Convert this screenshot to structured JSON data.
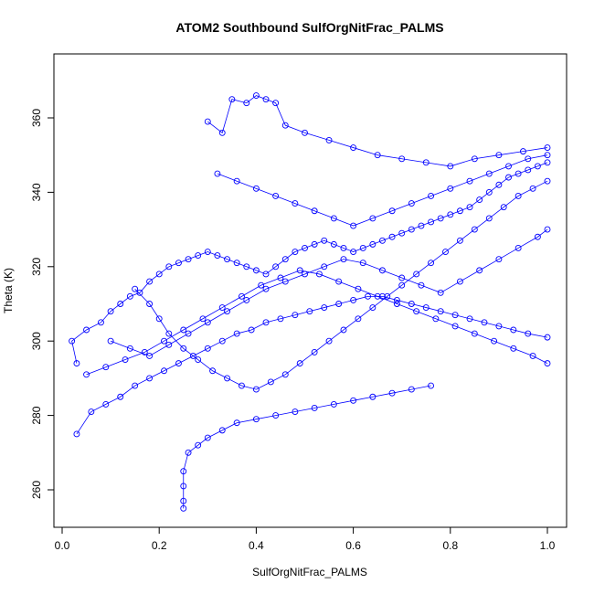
{
  "chart_data": {
    "type": "scatter",
    "title": "ATOM2 Southbound SulfOrgNitFrac_PALMS",
    "xlabel": "SulfOrgNitFrac_PALMS",
    "ylabel": "Theta (K)",
    "xlim": [
      0.0,
      1.0
    ],
    "ylim": [
      250,
      375
    ],
    "xticks": [
      {
        "value": 0.0,
        "label": "0.0"
      },
      {
        "value": 0.2,
        "label": "0.2"
      },
      {
        "value": 0.4,
        "label": "0.4"
      },
      {
        "value": 0.6,
        "label": "0.6"
      },
      {
        "value": 0.8,
        "label": "0.8"
      },
      {
        "value": 1.0,
        "label": "1.0"
      }
    ],
    "yticks": [
      {
        "value": 260,
        "label": "260"
      },
      {
        "value": 280,
        "label": "280"
      },
      {
        "value": 300,
        "label": "300"
      },
      {
        "value": 320,
        "label": "320"
      },
      {
        "value": 340,
        "label": "340"
      },
      {
        "value": 360,
        "label": "360"
      }
    ],
    "marker": "open-circle",
    "connected": true,
    "color": "#0000ff",
    "grid": false,
    "series": [
      {
        "points": [
          [
            0.03,
            294
          ],
          [
            0.02,
            300
          ],
          [
            0.05,
            303
          ],
          [
            0.08,
            305
          ],
          [
            0.1,
            308
          ],
          [
            0.12,
            310
          ],
          [
            0.14,
            312
          ],
          [
            0.16,
            313
          ],
          [
            0.18,
            316
          ],
          [
            0.2,
            318
          ],
          [
            0.22,
            320
          ],
          [
            0.24,
            321
          ],
          [
            0.26,
            322
          ],
          [
            0.28,
            323
          ],
          [
            0.3,
            324
          ],
          [
            0.32,
            323
          ],
          [
            0.34,
            322
          ],
          [
            0.36,
            321
          ],
          [
            0.38,
            320
          ],
          [
            0.4,
            319
          ],
          [
            0.42,
            318
          ],
          [
            0.44,
            320
          ],
          [
            0.46,
            322
          ],
          [
            0.48,
            324
          ],
          [
            0.5,
            325
          ],
          [
            0.52,
            326
          ],
          [
            0.54,
            327
          ],
          [
            0.56,
            326
          ],
          [
            0.58,
            325
          ],
          [
            0.6,
            324
          ],
          [
            0.62,
            325
          ],
          [
            0.64,
            326
          ],
          [
            0.66,
            327
          ],
          [
            0.68,
            328
          ],
          [
            0.7,
            329
          ],
          [
            0.72,
            330
          ],
          [
            0.74,
            331
          ],
          [
            0.76,
            332
          ],
          [
            0.78,
            333
          ],
          [
            0.8,
            334
          ],
          [
            0.82,
            335
          ],
          [
            0.84,
            336
          ],
          [
            0.86,
            338
          ],
          [
            0.88,
            340
          ],
          [
            0.9,
            342
          ],
          [
            0.92,
            344
          ],
          [
            0.94,
            345
          ],
          [
            0.96,
            346
          ],
          [
            0.98,
            347
          ],
          [
            1.0,
            348
          ]
        ]
      },
      {
        "points": [
          [
            0.03,
            275
          ],
          [
            0.06,
            281
          ],
          [
            0.09,
            283
          ],
          [
            0.12,
            285
          ],
          [
            0.15,
            288
          ],
          [
            0.18,
            290
          ],
          [
            0.21,
            292
          ],
          [
            0.24,
            294
          ],
          [
            0.27,
            296
          ],
          [
            0.3,
            298
          ],
          [
            0.33,
            300
          ],
          [
            0.36,
            302
          ],
          [
            0.39,
            303
          ],
          [
            0.42,
            305
          ],
          [
            0.45,
            306
          ],
          [
            0.48,
            307
          ],
          [
            0.51,
            308
          ],
          [
            0.54,
            309
          ],
          [
            0.57,
            310
          ],
          [
            0.6,
            311
          ],
          [
            0.63,
            312
          ],
          [
            0.66,
            312
          ],
          [
            0.69,
            311
          ],
          [
            0.72,
            310
          ],
          [
            0.75,
            309
          ],
          [
            0.78,
            308
          ],
          [
            0.81,
            307
          ],
          [
            0.84,
            306
          ],
          [
            0.87,
            305
          ],
          [
            0.9,
            304
          ],
          [
            0.93,
            303
          ],
          [
            0.96,
            302
          ],
          [
            1.0,
            301
          ]
        ]
      },
      {
        "points": [
          [
            0.25,
            255
          ],
          [
            0.25,
            257
          ],
          [
            0.25,
            261
          ],
          [
            0.25,
            265
          ],
          [
            0.26,
            270
          ],
          [
            0.28,
            272
          ],
          [
            0.3,
            274
          ],
          [
            0.33,
            276
          ],
          [
            0.36,
            278
          ],
          [
            0.4,
            279
          ],
          [
            0.44,
            280
          ],
          [
            0.48,
            281
          ],
          [
            0.52,
            282
          ],
          [
            0.56,
            283
          ],
          [
            0.6,
            284
          ],
          [
            0.64,
            285
          ],
          [
            0.68,
            286
          ],
          [
            0.72,
            287
          ],
          [
            0.76,
            288
          ]
        ]
      },
      {
        "points": [
          [
            0.3,
            359
          ],
          [
            0.33,
            356
          ],
          [
            0.35,
            365
          ],
          [
            0.38,
            364
          ],
          [
            0.4,
            366
          ],
          [
            0.42,
            365
          ],
          [
            0.44,
            364
          ],
          [
            0.46,
            358
          ],
          [
            0.5,
            356
          ],
          [
            0.55,
            354
          ],
          [
            0.6,
            352
          ],
          [
            0.65,
            350
          ],
          [
            0.7,
            349
          ],
          [
            0.75,
            348
          ],
          [
            0.8,
            347
          ],
          [
            0.85,
            349
          ],
          [
            0.9,
            350
          ],
          [
            0.95,
            351
          ],
          [
            1.0,
            352
          ]
        ]
      },
      {
        "points": [
          [
            0.15,
            314
          ],
          [
            0.18,
            310
          ],
          [
            0.2,
            306
          ],
          [
            0.22,
            302
          ],
          [
            0.25,
            298
          ],
          [
            0.28,
            295
          ],
          [
            0.31,
            292
          ],
          [
            0.34,
            290
          ],
          [
            0.37,
            288
          ],
          [
            0.4,
            287
          ],
          [
            0.43,
            289
          ],
          [
            0.46,
            291
          ],
          [
            0.49,
            294
          ],
          [
            0.52,
            297
          ],
          [
            0.55,
            300
          ],
          [
            0.58,
            303
          ],
          [
            0.61,
            306
          ],
          [
            0.64,
            309
          ],
          [
            0.67,
            312
          ],
          [
            0.7,
            315
          ],
          [
            0.73,
            318
          ],
          [
            0.76,
            321
          ],
          [
            0.79,
            324
          ],
          [
            0.82,
            327
          ],
          [
            0.85,
            330
          ],
          [
            0.88,
            333
          ],
          [
            0.91,
            336
          ],
          [
            0.94,
            339
          ],
          [
            0.97,
            341
          ],
          [
            1.0,
            343
          ]
        ]
      },
      {
        "points": [
          [
            0.1,
            300
          ],
          [
            0.14,
            298
          ],
          [
            0.18,
            296
          ],
          [
            0.22,
            299
          ],
          [
            0.26,
            302
          ],
          [
            0.3,
            305
          ],
          [
            0.34,
            308
          ],
          [
            0.38,
            311
          ],
          [
            0.42,
            314
          ],
          [
            0.46,
            316
          ],
          [
            0.5,
            318
          ],
          [
            0.54,
            320
          ],
          [
            0.58,
            322
          ],
          [
            0.62,
            321
          ],
          [
            0.66,
            319
          ],
          [
            0.7,
            317
          ],
          [
            0.74,
            315
          ],
          [
            0.78,
            313
          ],
          [
            0.82,
            316
          ],
          [
            0.86,
            319
          ],
          [
            0.9,
            322
          ],
          [
            0.94,
            325
          ],
          [
            0.98,
            328
          ],
          [
            1.0,
            330
          ]
        ]
      },
      {
        "points": [
          [
            0.32,
            345
          ],
          [
            0.36,
            343
          ],
          [
            0.4,
            341
          ],
          [
            0.44,
            339
          ],
          [
            0.48,
            337
          ],
          [
            0.52,
            335
          ],
          [
            0.56,
            333
          ],
          [
            0.6,
            331
          ],
          [
            0.64,
            333
          ],
          [
            0.68,
            335
          ],
          [
            0.72,
            337
          ],
          [
            0.76,
            339
          ],
          [
            0.8,
            341
          ],
          [
            0.84,
            343
          ],
          [
            0.88,
            345
          ],
          [
            0.92,
            347
          ],
          [
            0.96,
            349
          ],
          [
            1.0,
            350
          ]
        ]
      },
      {
        "points": [
          [
            0.05,
            291
          ],
          [
            0.09,
            293
          ],
          [
            0.13,
            295
          ],
          [
            0.17,
            297
          ],
          [
            0.21,
            300
          ],
          [
            0.25,
            303
          ],
          [
            0.29,
            306
          ],
          [
            0.33,
            309
          ],
          [
            0.37,
            312
          ],
          [
            0.41,
            315
          ],
          [
            0.45,
            317
          ],
          [
            0.49,
            319
          ],
          [
            0.53,
            318
          ],
          [
            0.57,
            316
          ],
          [
            0.61,
            314
          ],
          [
            0.65,
            312
          ],
          [
            0.69,
            310
          ],
          [
            0.73,
            308
          ],
          [
            0.77,
            306
          ],
          [
            0.81,
            304
          ],
          [
            0.85,
            302
          ],
          [
            0.89,
            300
          ],
          [
            0.93,
            298
          ],
          [
            0.97,
            296
          ],
          [
            1.0,
            294
          ]
        ]
      }
    ]
  }
}
